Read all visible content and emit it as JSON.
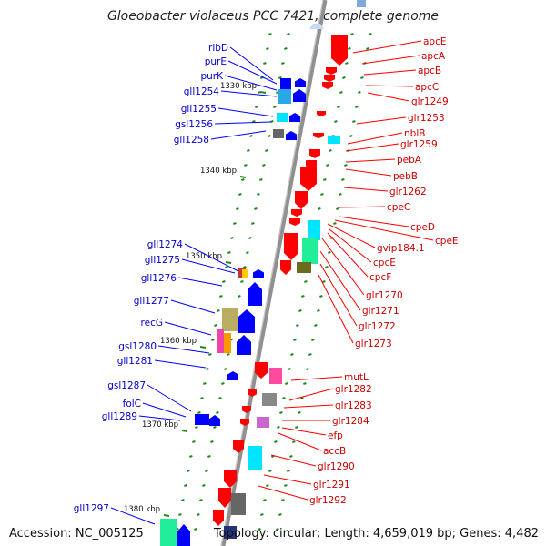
{
  "title": "Gloeobacter violaceus PCC 7421, complete genome",
  "footer": {
    "accession": "Accession: NC_005125",
    "summary": "Topology: circular; Length: 4,659,019 bp; Genes: 4,482"
  },
  "colors": {
    "forward_label": "#0000cc",
    "reverse_label": "#cc0000",
    "forward_gene": "#0000ff",
    "reverse_gene": "#ff0000",
    "backbone": "#909090",
    "tick": "#1f8a1f",
    "kbp_label": "#111111"
  },
  "scale_labels": [
    "1330 kbp",
    "1340 kbp",
    "1350 kbp",
    "1360 kbp",
    "1370 kbp",
    "1380 kbp"
  ],
  "forward_genes": [
    "ribD",
    "purE",
    "purK",
    "gll1254",
    "gll1255",
    "gsl1256",
    "gll1258",
    "gll1274",
    "gll1275",
    "gll1276",
    "gll1277",
    "recG",
    "gsl1280",
    "gll1281",
    "gsl1287",
    "folC",
    "gll1289",
    "gll1297"
  ],
  "reverse_genes": [
    "apcE",
    "apcA",
    "apcB",
    "apcC",
    "glr1249",
    "glr1253",
    "nblB",
    "glr1259",
    "pebA",
    "pebB",
    "glr1262",
    "cpeC",
    "cpeD",
    "cpeE",
    "gvip184.1",
    "cpcE",
    "cpcF",
    "glr1270",
    "glr1271",
    "glr1272",
    "glr1273",
    "mutL",
    "glr1282",
    "glr1283",
    "glr1284",
    "efp",
    "accB",
    "glr1290",
    "glr1291",
    "glr1292"
  ]
}
